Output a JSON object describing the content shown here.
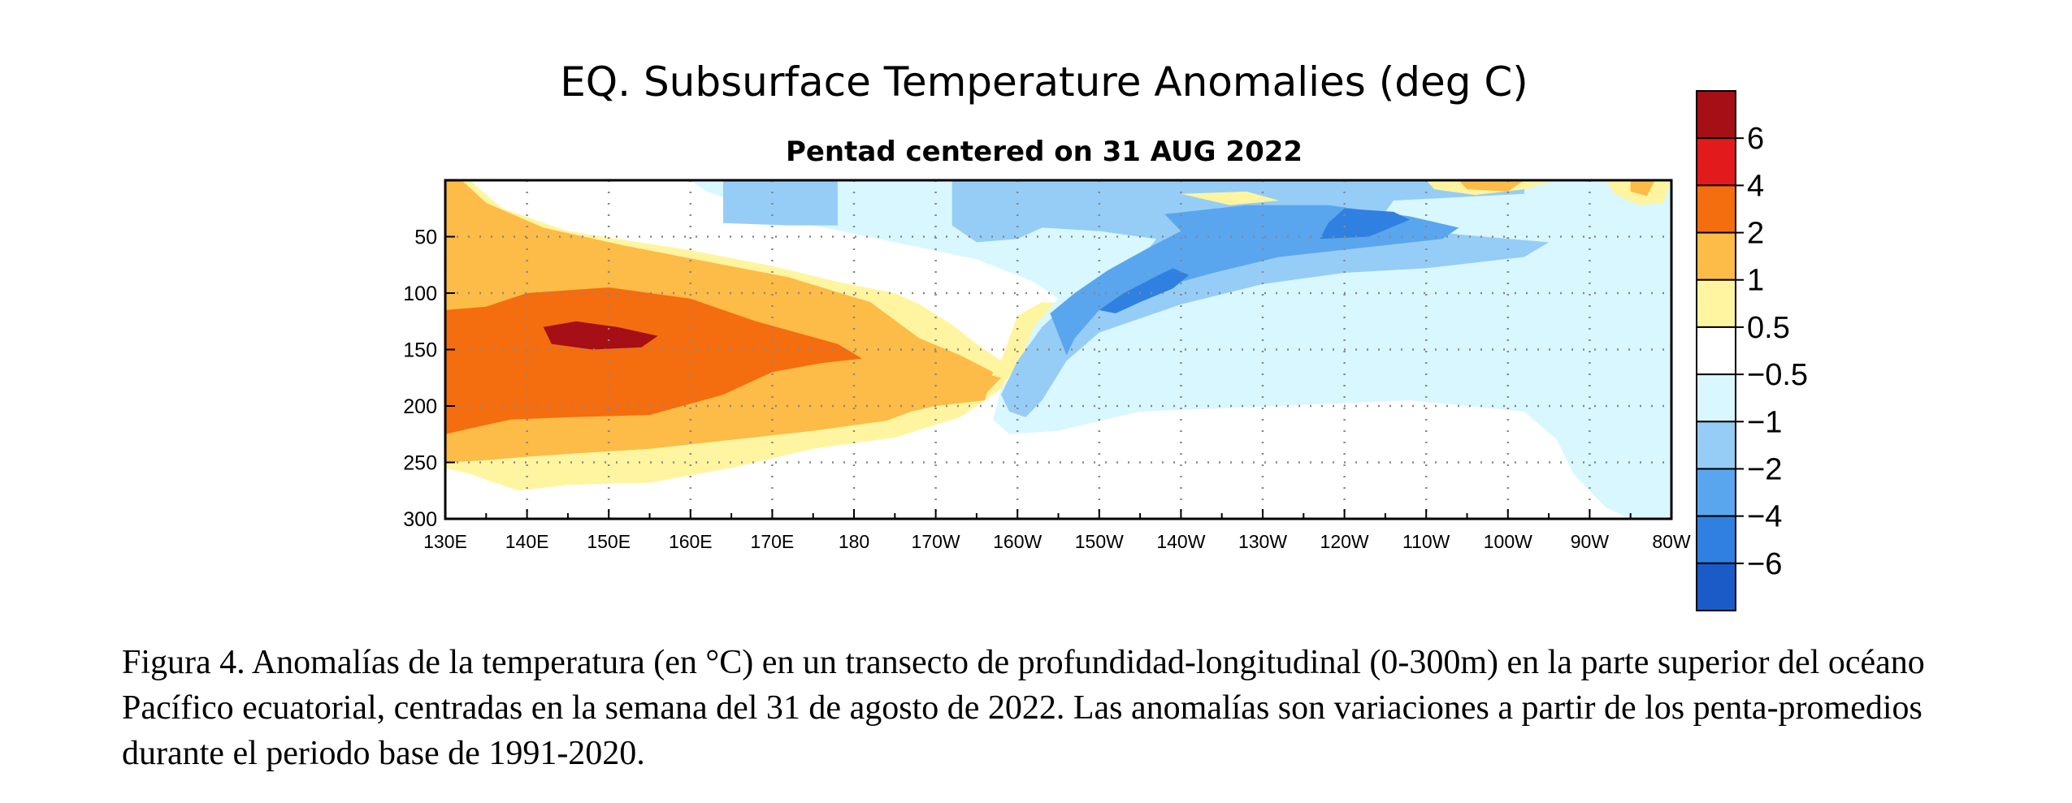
{
  "chart_data": {
    "type": "heatmap",
    "title": "EQ. Subsurface Temperature Anomalies (deg C)",
    "subtitle": "Pentad centered on 31 AUG 2022",
    "xlabel": "",
    "ylabel": "",
    "x_ticks": [
      "130E",
      "140E",
      "150E",
      "160E",
      "170E",
      "180",
      "170W",
      "160W",
      "150W",
      "140W",
      "130W",
      "120W",
      "110W",
      "100W",
      "90W",
      "80W"
    ],
    "y_ticks": [
      50,
      100,
      150,
      200,
      250,
      300
    ],
    "xlim_deg_east": [
      130,
      280
    ],
    "ylim_depth_m": [
      0,
      300
    ],
    "y_inverted": true,
    "grid": "dotted",
    "colorbar": {
      "placement": "right",
      "labels": [
        "6",
        "4",
        "2",
        "1",
        "0.5",
        "−0.5",
        "−1",
        "−2",
        "−4",
        "−6"
      ],
      "colors": [
        "#a50f15",
        "#e31a1c",
        "#f46d0f",
        "#fdbb47",
        "#fff5a0",
        "#ffffff",
        "#d9f7ff",
        "#96cdf7",
        "#5aa6ee",
        "#2f80e0",
        "#1a5bc8"
      ]
    },
    "contours": [
      {
        "level": "1 to 2",
        "color": "#fff5a0",
        "points": [
          [
            130,
            0
          ],
          [
            133,
            0
          ],
          [
            137,
            25
          ],
          [
            145,
            45
          ],
          [
            160,
            62
          ],
          [
            170,
            76
          ],
          [
            178,
            90
          ],
          [
            185,
            100
          ],
          [
            188,
            110
          ],
          [
            192,
            128
          ],
          [
            195,
            145
          ],
          [
            198,
            160
          ],
          [
            200,
            120
          ],
          [
            203,
            108
          ],
          [
            208,
            110
          ],
          [
            202,
            140
          ],
          [
            198,
            185
          ],
          [
            193,
            210
          ],
          [
            185,
            228
          ],
          [
            175,
            238
          ],
          [
            165,
            255
          ],
          [
            155,
            268
          ],
          [
            145,
            270
          ],
          [
            139,
            275
          ],
          [
            136,
            268
          ],
          [
            133,
            260
          ],
          [
            130,
            255
          ]
        ]
      },
      {
        "level": "2 to 4",
        "color": "#fdbb47",
        "points": [
          [
            130,
            0
          ],
          [
            132,
            0
          ],
          [
            135,
            20
          ],
          [
            142,
            42
          ],
          [
            152,
            58
          ],
          [
            162,
            72
          ],
          [
            172,
            86
          ],
          [
            182,
            108
          ],
          [
            188,
            140
          ],
          [
            193,
            155
          ],
          [
            197,
            170
          ],
          [
            196,
            195
          ],
          [
            190,
            200
          ],
          [
            187,
            205
          ],
          [
            184,
            213
          ],
          [
            175,
            222
          ],
          [
            165,
            230
          ],
          [
            155,
            238
          ],
          [
            146,
            242
          ],
          [
            140,
            245
          ],
          [
            135,
            248
          ],
          [
            130,
            250
          ]
        ]
      },
      {
        "level": "4 to 6",
        "color": "#f46d0f",
        "points": [
          [
            130,
            115
          ],
          [
            135,
            112
          ],
          [
            140,
            100
          ],
          [
            150,
            95
          ],
          [
            160,
            105
          ],
          [
            168,
            125
          ],
          [
            178,
            145
          ],
          [
            181,
            158
          ],
          [
            176,
            162
          ],
          [
            170,
            170
          ],
          [
            164,
            190
          ],
          [
            155,
            208
          ],
          [
            145,
            210
          ],
          [
            138,
            212
          ],
          [
            133,
            220
          ],
          [
            130,
            225
          ]
        ]
      },
      {
        "level": "6+",
        "color": "#a50f15",
        "points": [
          [
            142,
            130
          ],
          [
            146,
            125
          ],
          [
            151,
            130
          ],
          [
            156,
            138
          ],
          [
            154,
            148
          ],
          [
            148,
            150
          ],
          [
            143,
            145
          ]
        ]
      },
      {
        "level": "-0.5 to -1",
        "color": "#d9f7ff",
        "points": [
          [
            160,
            0
          ],
          [
            280,
            0
          ],
          [
            280,
            300
          ],
          [
            275,
            300
          ],
          [
            272,
            290
          ],
          [
            268,
            260
          ],
          [
            266,
            230
          ],
          [
            262,
            205
          ],
          [
            248,
            195
          ],
          [
            232,
            200
          ],
          [
            215,
            205
          ],
          [
            205,
            222
          ],
          [
            199,
            225
          ],
          [
            197,
            212
          ],
          [
            198,
            185
          ],
          [
            200,
            165
          ],
          [
            202,
            130
          ],
          [
            205,
            105
          ],
          [
            202,
            90
          ],
          [
            195,
            70
          ],
          [
            185,
            55
          ],
          [
            175,
            40
          ],
          [
            168,
            25
          ],
          [
            162,
            10
          ]
        ]
      },
      {
        "level": "-1 to -2",
        "color": "#96cdf7",
        "points": [
          [
            164,
            0
          ],
          [
            178,
            0
          ],
          [
            178,
            40
          ],
          [
            172,
            40
          ],
          [
            164,
            38
          ]
        ]
      },
      {
        "level": "-1 to -2",
        "color": "#96cdf7",
        "points": [
          [
            192,
            0
          ],
          [
            262,
            0
          ],
          [
            262,
            12
          ],
          [
            246,
            18
          ],
          [
            244,
            38
          ],
          [
            254,
            48
          ],
          [
            265,
            55
          ],
          [
            262,
            68
          ],
          [
            250,
            78
          ],
          [
            240,
            82
          ],
          [
            230,
            92
          ],
          [
            220,
            110
          ],
          [
            210,
            135
          ],
          [
            206,
            160
          ],
          [
            203,
            195
          ],
          [
            201,
            210
          ],
          [
            199,
            205
          ],
          [
            198,
            190
          ],
          [
            200,
            160
          ],
          [
            203,
            130
          ],
          [
            206,
            110
          ],
          [
            210,
            90
          ],
          [
            215,
            70
          ],
          [
            217,
            52
          ],
          [
            210,
            45
          ],
          [
            203,
            42
          ],
          [
            200,
            52
          ],
          [
            195,
            55
          ],
          [
            192,
            40
          ]
        ]
      },
      {
        "level": "-2 to -4",
        "color": "#5aa6ee",
        "points": [
          [
            218,
            30
          ],
          [
            228,
            22
          ],
          [
            238,
            22
          ],
          [
            248,
            32
          ],
          [
            254,
            42
          ],
          [
            252,
            52
          ],
          [
            242,
            60
          ],
          [
            232,
            68
          ],
          [
            224,
            82
          ],
          [
            216,
            98
          ],
          [
            210,
            115
          ],
          [
            207,
            140
          ],
          [
            206,
            155
          ],
          [
            204,
            118
          ],
          [
            207,
            100
          ],
          [
            211,
            80
          ],
          [
            216,
            60
          ],
          [
            220,
            45
          ]
        ]
      },
      {
        "level": "-4 to -6",
        "color": "#2f80e0",
        "points": [
          [
            240,
            25
          ],
          [
            246,
            28
          ],
          [
            248,
            35
          ],
          [
            243,
            50
          ],
          [
            237,
            52
          ],
          [
            238,
            38
          ]
        ]
      },
      {
        "level": "-4 to -6",
        "color": "#2f80e0",
        "points": [
          [
            210,
            115
          ],
          [
            213,
            100
          ],
          [
            217,
            85
          ],
          [
            219,
            78
          ],
          [
            221,
            84
          ],
          [
            219,
            96
          ],
          [
            215,
            108
          ],
          [
            212,
            118
          ]
        ]
      },
      {
        "level": "1 to 2",
        "color": "#fff5a0",
        "points": [
          [
            250,
            0
          ],
          [
            266,
            0
          ],
          [
            262,
            8
          ],
          [
            256,
            13
          ],
          [
            251,
            8
          ]
        ]
      },
      {
        "level": "2 to 4",
        "color": "#fdbb47",
        "points": [
          [
            254,
            0
          ],
          [
            262,
            0
          ],
          [
            260,
            10
          ],
          [
            255,
            8
          ]
        ]
      },
      {
        "level": "1 to 2",
        "color": "#fff5a0",
        "points": [
          [
            272,
            0
          ],
          [
            280,
            0
          ],
          [
            279,
            20
          ],
          [
            276,
            22
          ],
          [
            273,
            12
          ]
        ]
      },
      {
        "level": "2 to 4",
        "color": "#fdbb47",
        "points": [
          [
            275,
            0
          ],
          [
            278,
            0
          ],
          [
            277,
            14
          ],
          [
            275,
            10
          ]
        ]
      },
      {
        "level": "2 to 4",
        "color": "#fdbb47",
        "points": [
          [
            190,
            176
          ],
          [
            193,
            166
          ],
          [
            198,
            175
          ],
          [
            196,
            190
          ],
          [
            192,
            190
          ]
        ]
      },
      {
        "level": "1 to 2",
        "color": "#fff5a0",
        "points": [
          [
            220,
            12
          ],
          [
            228,
            10
          ],
          [
            232,
            18
          ],
          [
            226,
            22
          ]
        ]
      }
    ]
  },
  "caption": "Figura 4. Anomalías de la temperatura (en °C) en un transecto de profundidad-longitudinal (0-300m) en la parte superior del océano Pacífico ecuatorial, centradas en la semana del 31 de agosto de 2022. Las anomalías son variaciones a partir de los penta-promedios durante el periodo base de 1991-2020."
}
